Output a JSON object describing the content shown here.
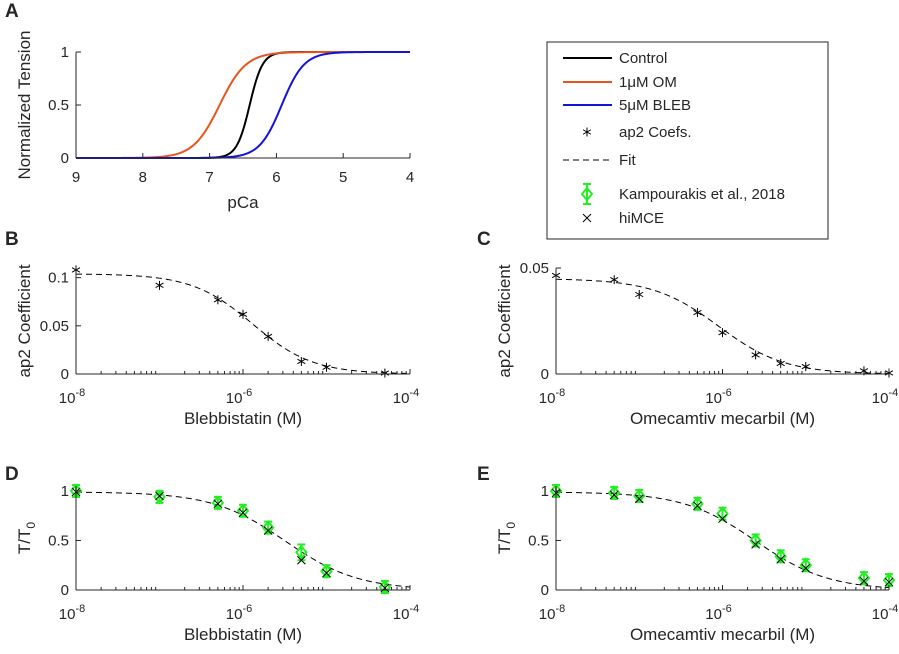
{
  "chart_data": [
    {
      "id": "A",
      "type": "line",
      "xlabel": "pCa",
      "ylabel": "Normalized Tension",
      "xlim": [
        9,
        4
      ],
      "ylim": [
        0,
        1
      ],
      "x_reversed": true,
      "xticks": [
        9,
        8,
        7,
        6,
        5,
        4
      ],
      "xtick_labels": [
        "9",
        "8",
        "7",
        "6",
        "5",
        "4"
      ],
      "yticks": [
        0,
        0.5,
        1
      ],
      "ytick_labels": [
        "0",
        "0.5",
        "1"
      ],
      "series": [
        {
          "name": "Control",
          "color": "#000000",
          "pca50": 6.4,
          "hill": 4.5
        },
        {
          "name": "1μM OM",
          "color": "#e8541c",
          "pca50": 6.85,
          "hill": 2.2
        },
        {
          "name": "5μM BLEB",
          "color": "#1414d9",
          "pca50": 5.92,
          "hill": 2.6
        }
      ]
    },
    {
      "id": "B",
      "type": "scatter",
      "xscale": "log",
      "xlabel": "Blebbistatin (M)",
      "ylabel": "ap2 Coefficient",
      "xlim": [
        1e-08,
        0.0001
      ],
      "ylim": [
        0,
        0.11
      ],
      "xticks": [
        1e-08,
        1e-06,
        0.0001
      ],
      "xtick_bases": [
        "10",
        "10",
        "10"
      ],
      "xtick_exps": [
        "-8",
        "-6",
        "-4"
      ],
      "yticks": [
        0,
        0.05,
        0.1
      ],
      "ytick_labels": [
        "0",
        "0.05",
        "0.1"
      ],
      "points": {
        "x": [
          1e-08,
          1e-07,
          5e-07,
          1e-06,
          2e-06,
          5e-06,
          1e-05,
          5e-05
        ],
        "y": [
          0.108,
          0.092,
          0.077,
          0.062,
          0.039,
          0.013,
          0.007,
          0.001
        ]
      },
      "fit": {
        "top": 0.104,
        "ic50": 1.3e-06,
        "hill": 1.2
      }
    },
    {
      "id": "C",
      "type": "scatter",
      "xscale": "log",
      "xlabel": "Omecamtiv mecarbil (M)",
      "ylabel": "ap2 Coefficient",
      "xlim": [
        1e-08,
        0.0001
      ],
      "ylim": [
        0,
        0.05
      ],
      "xticks": [
        1e-08,
        1e-06,
        0.0001
      ],
      "xtick_bases": [
        "10",
        "10",
        "10"
      ],
      "xtick_exps": [
        "-8",
        "-6",
        "-4"
      ],
      "yticks": [
        0,
        0.05
      ],
      "ytick_labels": [
        "0",
        "0.05"
      ],
      "points": {
        "x": [
          1e-08,
          5e-08,
          1e-07,
          5e-07,
          1e-06,
          2.5e-06,
          5e-06,
          1e-05,
          5e-05,
          0.0001
        ],
        "y": [
          0.0465,
          0.0445,
          0.0375,
          0.029,
          0.0195,
          0.009,
          0.005,
          0.0035,
          0.0015,
          0.0005
        ]
      },
      "fit": {
        "top": 0.045,
        "ic50": 9e-07,
        "hill": 1.1
      }
    },
    {
      "id": "D",
      "type": "scatter",
      "xscale": "log",
      "xlabel": "Blebbistatin (M)",
      "ylabel": "T/T0",
      "xlim": [
        1e-08,
        0.0001
      ],
      "ylim": [
        0,
        1.05
      ],
      "xticks": [
        1e-08,
        1e-06,
        0.0001
      ],
      "xtick_bases": [
        "10",
        "10",
        "10"
      ],
      "xtick_exps": [
        "-8",
        "-6",
        "-4"
      ],
      "yticks": [
        0,
        0.5,
        1
      ],
      "ytick_labels": [
        "0",
        "0.5",
        "1"
      ],
      "experiment": {
        "x": [
          1e-08,
          1e-07,
          5e-07,
          1e-06,
          2e-06,
          5e-06,
          1e-05,
          5e-05
        ],
        "y": [
          1.0,
          0.94,
          0.88,
          0.8,
          0.63,
          0.38,
          0.19,
          0.03
        ],
        "err": [
          0.04,
          0.04,
          0.05,
          0.05,
          0.05,
          0.08,
          0.06,
          0.03
        ]
      },
      "himce": {
        "x": [
          1e-08,
          1e-07,
          5e-07,
          1e-06,
          2e-06,
          5e-06,
          1e-05,
          5e-05
        ],
        "y": [
          0.99,
          0.95,
          0.87,
          0.78,
          0.6,
          0.3,
          0.17,
          0.02
        ]
      },
      "fit": {
        "top": 0.99,
        "ic50": 3.2e-06,
        "hill": 1.0
      }
    },
    {
      "id": "E",
      "type": "scatter",
      "xscale": "log",
      "xlabel": "Omecamtiv mecarbil (M)",
      "ylabel": "T/T0",
      "xlim": [
        1e-08,
        0.0001
      ],
      "ylim": [
        0,
        1.05
      ],
      "xticks": [
        1e-08,
        1e-06,
        0.0001
      ],
      "xtick_bases": [
        "10",
        "10",
        "10"
      ],
      "xtick_exps": [
        "-8",
        "-6",
        "-4"
      ],
      "yticks": [
        0,
        0.5,
        1
      ],
      "ytick_labels": [
        "0",
        "0.5",
        "1"
      ],
      "experiment": {
        "x": [
          1e-08,
          5e-08,
          1e-07,
          5e-07,
          1e-06,
          2.5e-06,
          5e-06,
          1e-05,
          5e-05,
          0.0001
        ],
        "y": [
          1.0,
          0.98,
          0.95,
          0.87,
          0.77,
          0.5,
          0.34,
          0.25,
          0.12,
          0.1
        ],
        "err": [
          0.04,
          0.04,
          0.05,
          0.05,
          0.05,
          0.05,
          0.05,
          0.04,
          0.04,
          0.04
        ]
      },
      "himce": {
        "x": [
          1e-08,
          5e-08,
          1e-07,
          5e-07,
          1e-06,
          2.5e-06,
          5e-06,
          1e-05,
          5e-05,
          0.0001
        ],
        "y": [
          0.98,
          0.96,
          0.92,
          0.85,
          0.72,
          0.46,
          0.31,
          0.22,
          0.09,
          0.08
        ]
      },
      "fit": {
        "top": 0.99,
        "ic50": 2.5e-06,
        "hill": 1.0
      }
    }
  ],
  "legend": {
    "items": [
      {
        "label": "Control",
        "marker": "line",
        "color": "#000000"
      },
      {
        "label": "1μM OM",
        "marker": "line",
        "color": "#e8541c"
      },
      {
        "label": "5μM BLEB",
        "marker": "line",
        "color": "#1414d9"
      },
      {
        "label": "ap2 Coefs.",
        "marker": "asterisk",
        "color": "#000000"
      },
      {
        "label": "Fit",
        "marker": "dashed",
        "color": "#000000"
      },
      {
        "label": "Kampourakis et al., 2018",
        "marker": "diamond-errorbar",
        "color": "#22ee22"
      },
      {
        "label": "hiMCE",
        "marker": "x",
        "color": "#000000"
      }
    ]
  }
}
